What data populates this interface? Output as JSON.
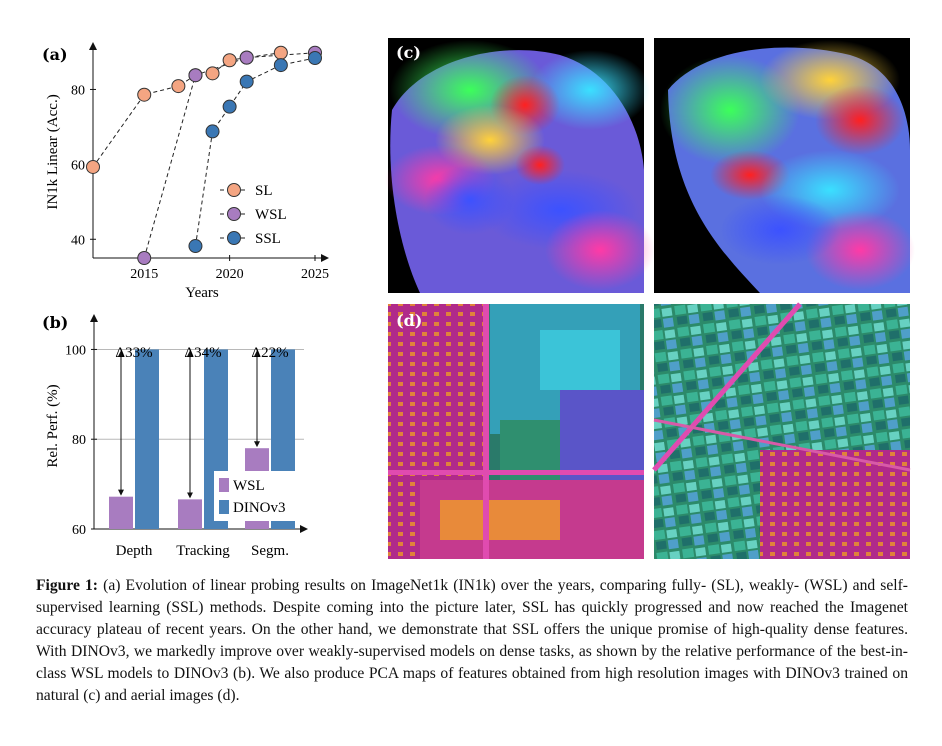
{
  "panel_a": {
    "label": "(a)",
    "chart_data": {
      "type": "line",
      "xlabel": "Years",
      "ylabel": "IN1k Linear (Acc.)",
      "xlim": [
        2012,
        2025
      ],
      "ylim": [
        35,
        90
      ],
      "xticks": [
        "2015",
        "2020",
        "2025"
      ],
      "yticks": [
        "40",
        "60",
        "80"
      ],
      "legend_position": "middle-right",
      "series": [
        {
          "name": "SL",
          "color": "#f4a582",
          "x": [
            2012,
            2015,
            2017,
            2018,
            2019,
            2020,
            2021,
            2023
          ],
          "y": [
            59.3,
            78.6,
            80.9,
            83.8,
            84.3,
            87.8,
            88.5,
            89.8
          ]
        },
        {
          "name": "WSL",
          "color": "#a87cc0",
          "x": [
            2015,
            2018,
            2021,
            2025
          ],
          "y": [
            35,
            83.8,
            88.5,
            89.8
          ]
        },
        {
          "name": "SSL",
          "color": "#3a77b4",
          "x": [
            2018,
            2019,
            2020,
            2021,
            2023,
            2025
          ],
          "y": [
            38.2,
            68.8,
            75.4,
            82.1,
            86.5,
            88.4
          ]
        }
      ]
    }
  },
  "panel_b": {
    "label": "(b)",
    "chart_data": {
      "type": "bar",
      "categories": [
        "Depth",
        "Tracking",
        "Segm."
      ],
      "ylabel": "Rel. Perf. (%)",
      "ylim": [
        60,
        105
      ],
      "yticks": [
        "60",
        "80",
        "100"
      ],
      "legend_position": "bottom-right",
      "series": [
        {
          "name": "WSL",
          "color": "#a87cc0",
          "values": [
            67.2,
            66.6,
            78.0
          ]
        },
        {
          "name": "DINOv3",
          "color": "#4a82b8",
          "values": [
            100,
            100,
            100
          ]
        }
      ],
      "annotations": [
        "Δ33%",
        "Δ34%",
        "Δ22%"
      ]
    }
  },
  "panel_c": {
    "label": "(c)"
  },
  "panel_d": {
    "label": "(d)"
  },
  "caption": {
    "label": "Figure 1:",
    "text": "(a) Evolution of linear probing results on ImageNet1k (IN1k) over the years, comparing fully- (SL), weakly- (WSL) and self-supervised learning (SSL) methods. Despite coming into the picture later, SSL has quickly progressed and now reached the Imagenet accuracy plateau of recent years. On the other hand, we demonstrate that SSL offers the unique promise of high-quality dense features. With DINOv3, we markedly improve over weakly-supervised models on dense tasks, as shown by the relative performance of the best-in-class WSL models to DINOv3 (b). We also produce PCA maps of features obtained from high resolution images with DINOv3 trained on natural (c) and aerial images (d)."
  }
}
